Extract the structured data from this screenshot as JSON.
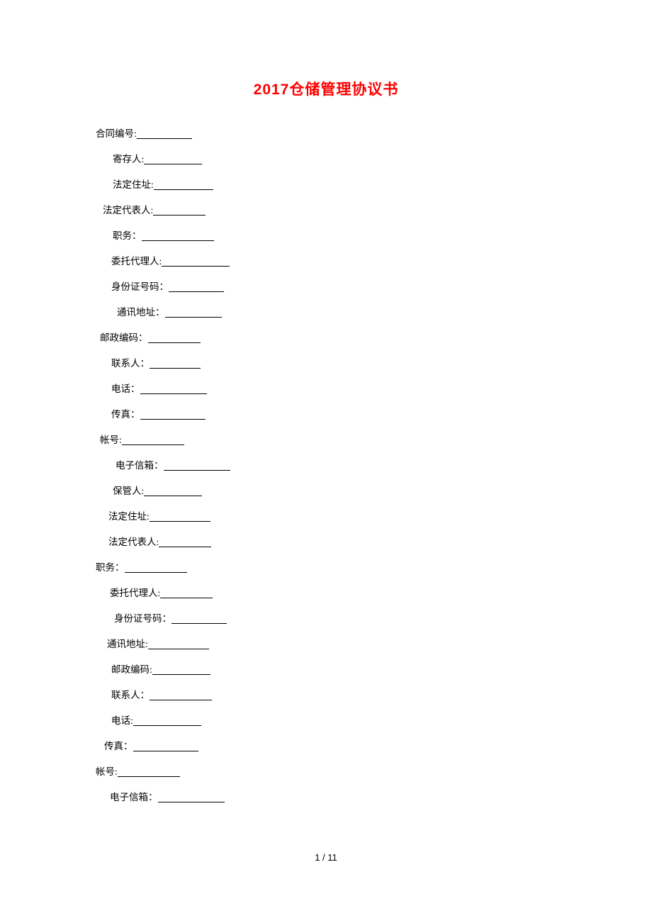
{
  "title": "2017仓储管理协议书",
  "title_color": "#ff0000",
  "title_fontsize": 21,
  "body_fontsize": 13.5,
  "text_color": "#000000",
  "background_color": "#ffffff",
  "line_spacing": 22.5,
  "fields": [
    {
      "label": "合同编号:",
      "indent": 0,
      "underline_width": 78
    },
    {
      "label": "寄存人:",
      "indent": 24,
      "underline_width": 82
    },
    {
      "label": "法定住址:",
      "indent": 24,
      "underline_width": 84
    },
    {
      "label": "法定代表人:",
      "indent": 10,
      "underline_width": 74
    },
    {
      "label": "职务：",
      "indent": 24,
      "underline_width": 102
    },
    {
      "label": "委托代理人:",
      "indent": 22,
      "underline_width": 96
    },
    {
      "label": "身份证号码：",
      "indent": 22,
      "underline_width": 78
    },
    {
      "label": "通讯地址：",
      "indent": 30,
      "underline_width": 80
    },
    {
      "label": "邮政编码：",
      "indent": 6,
      "underline_width": 74
    },
    {
      "label": "联系人：",
      "indent": 22,
      "underline_width": 72
    },
    {
      "label": "电话：",
      "indent": 22,
      "underline_width": 94
    },
    {
      "label": "传真：",
      "indent": 22,
      "underline_width": 92
    },
    {
      "label": "帐号:",
      "indent": 6,
      "underline_width": 88
    },
    {
      "label": "电子信箱：",
      "indent": 28,
      "underline_width": 94
    },
    {
      "label": "保管人:",
      "indent": 24,
      "underline_width": 82
    },
    {
      "label": "法定住址:",
      "indent": 18,
      "underline_width": 86
    },
    {
      "label": "法定代表人:",
      "indent": 18,
      "underline_width": 74
    },
    {
      "label": "职务：",
      "indent": 0,
      "underline_width": 88
    },
    {
      "label": "委托代理人:",
      "indent": 20,
      "underline_width": 74
    },
    {
      "label": "身份证号码：",
      "indent": 26,
      "underline_width": 78
    },
    {
      "label": "通讯地址:",
      "indent": 16,
      "underline_width": 86
    },
    {
      "label": "邮政编码:",
      "indent": 22,
      "underline_width": 82
    },
    {
      "label": "联系人：",
      "indent": 22,
      "underline_width": 88
    },
    {
      "label": "电话:",
      "indent": 22,
      "underline_width": 96
    },
    {
      "label": "传真：",
      "indent": 12,
      "underline_width": 92
    },
    {
      "label": "帐号:",
      "indent": 0,
      "underline_width": 88
    },
    {
      "label": "电子信箱：",
      "indent": 20,
      "underline_width": 94
    }
  ],
  "page_number": "1 / 11"
}
